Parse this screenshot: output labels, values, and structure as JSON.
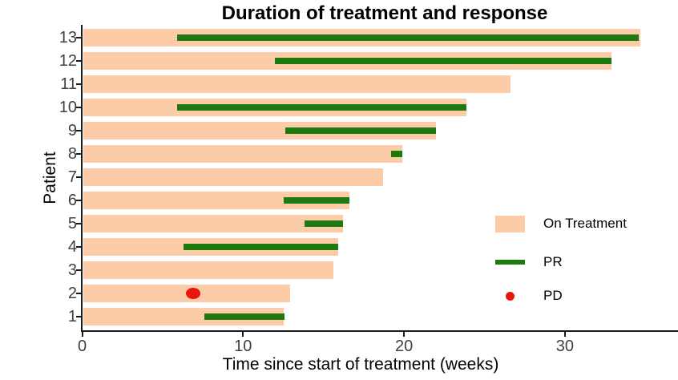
{
  "title": "Duration of treatment and response",
  "axes": {
    "xlabel": "Time since start of treatment (weeks)",
    "ylabel": "Patient"
  },
  "legend": {
    "items": [
      {
        "label": "On Treatment",
        "swatch": "bar"
      },
      {
        "label": "PR",
        "swatch": "line"
      },
      {
        "label": "PD",
        "swatch": "point"
      }
    ]
  },
  "colors": {
    "on_treatment": "#fccba8",
    "pr": "#1e7a0e",
    "pd": "#e8160c",
    "axis_line": "#1a1a1a",
    "tick_label": "#404040"
  },
  "chart_data": {
    "type": "bar",
    "subtype": "swimmer-plot",
    "orientation": "horizontal",
    "title": "Duration of treatment and response",
    "xlabel": "Time since start of treatment (weeks)",
    "ylabel": "Patient",
    "xlim": [
      0,
      37
    ],
    "x_ticks": [
      0,
      10,
      20,
      30
    ],
    "grid": false,
    "legend_position": "right-middle",
    "legend_entries": [
      "On Treatment",
      "PR",
      "PD"
    ],
    "patients": [
      {
        "patient": 13,
        "on_treatment_weeks": 34.7,
        "pr_interval": [
          5.9,
          34.6
        ],
        "pd_week": null
      },
      {
        "patient": 12,
        "on_treatment_weeks": 32.9,
        "pr_interval": [
          12.0,
          32.9
        ],
        "pd_week": null
      },
      {
        "patient": 11,
        "on_treatment_weeks": 26.6,
        "pr_interval": null,
        "pd_week": null
      },
      {
        "patient": 10,
        "on_treatment_weeks": 23.9,
        "pr_interval": [
          5.9,
          23.9
        ],
        "pd_week": null
      },
      {
        "patient": 9,
        "on_treatment_weeks": 22.0,
        "pr_interval": [
          12.6,
          22.0
        ],
        "pd_week": null
      },
      {
        "patient": 8,
        "on_treatment_weeks": 19.9,
        "pr_interval": [
          19.2,
          19.9
        ],
        "pd_week": null
      },
      {
        "patient": 7,
        "on_treatment_weeks": 18.7,
        "pr_interval": null,
        "pd_week": null
      },
      {
        "patient": 6,
        "on_treatment_weeks": 16.6,
        "pr_interval": [
          12.5,
          16.6
        ],
        "pd_week": null
      },
      {
        "patient": 5,
        "on_treatment_weeks": 16.2,
        "pr_interval": [
          13.8,
          16.2
        ],
        "pd_week": null
      },
      {
        "patient": 4,
        "on_treatment_weeks": 15.9,
        "pr_interval": [
          6.3,
          15.9
        ],
        "pd_week": null
      },
      {
        "patient": 3,
        "on_treatment_weeks": 15.6,
        "pr_interval": null,
        "pd_week": null
      },
      {
        "patient": 2,
        "on_treatment_weeks": 12.9,
        "pr_interval": null,
        "pd_week": 6.9
      },
      {
        "patient": 1,
        "on_treatment_weeks": 12.5,
        "pr_interval": [
          7.6,
          12.6
        ],
        "pd_week": null
      }
    ]
  }
}
